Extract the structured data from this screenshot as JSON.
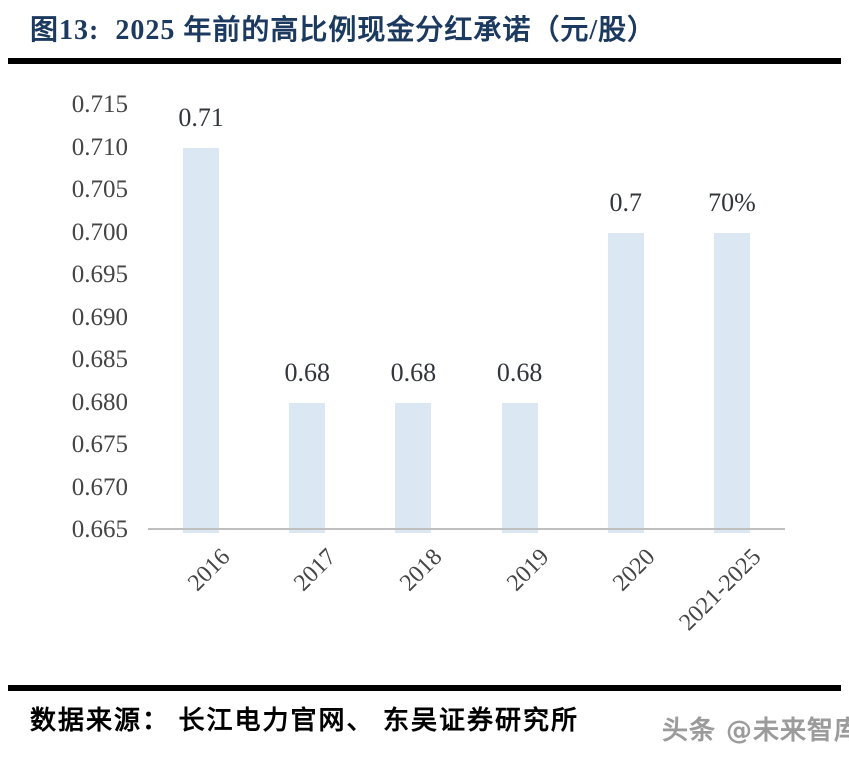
{
  "figure": {
    "label": "图13:",
    "title": "2025 年前的高比例现金分红承诺（元/股）"
  },
  "chart_data": {
    "type": "bar",
    "title": "2025 年前的高比例现金分红承诺（元/股）",
    "categories": [
      "2016",
      "2017",
      "2018",
      "2019",
      "2020",
      "2021-2025"
    ],
    "values": [
      0.71,
      0.68,
      0.68,
      0.68,
      0.7,
      0.7
    ],
    "bar_labels": [
      "0.71",
      "0.68",
      "0.68",
      "0.68",
      "0.7",
      "70%"
    ],
    "y_ticks": [
      "0.715",
      "0.710",
      "0.705",
      "0.700",
      "0.695",
      "0.690",
      "0.685",
      "0.680",
      "0.675",
      "0.670",
      "0.665"
    ],
    "ylim": [
      0.665,
      0.715
    ],
    "xlabel": "",
    "ylabel": "",
    "grid": false,
    "legend": false
  },
  "footer": {
    "source": "数据来源：  长江电力官网、  东吴证券研究所",
    "watermark": "头条 @未来智库"
  },
  "colors": {
    "title_text": "#1c3a5f",
    "bar_fill": "#dbe7f3",
    "axis_line": "#bfbfbf",
    "y_tick_text": "#454545",
    "x_tick_text": "#454545",
    "bar_label_text": "#32363c",
    "divider": "#000000",
    "source_text": "#000000",
    "watermark_text": "#9b9b9b"
  }
}
